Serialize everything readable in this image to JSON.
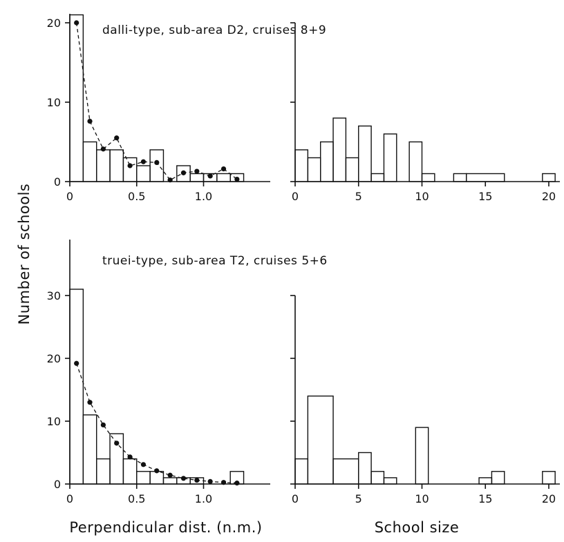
{
  "labels": {
    "ylabel": "Number of schools",
    "xlabel_left": "Perpendicular dist. (n.m.)",
    "xlabel_right": "School size"
  },
  "chart_data": [
    {
      "type": "bar",
      "id": "dalli-dist",
      "title": "dalli-type, sub-area D2, cruises 8+9",
      "xlabel": "",
      "ylabel": "Number of schools",
      "xlim": [
        0,
        1.5
      ],
      "ylim": [
        0,
        22
      ],
      "xticks": [
        0,
        0.5,
        1.0
      ],
      "xtick_labels": [
        "0",
        "0.5",
        "1.0"
      ],
      "yticks": [
        0,
        10,
        20
      ],
      "ytick_labels": [
        "0",
        "10",
        "20"
      ],
      "bin_edges": [
        0,
        0.1,
        0.2,
        0.3,
        0.4,
        0.5,
        0.6,
        0.7,
        0.8,
        0.9,
        1.0,
        1.1,
        1.2,
        1.3
      ],
      "values": [
        21,
        5,
        4,
        4,
        3,
        2,
        4,
        0,
        2,
        1,
        1,
        1,
        1
      ],
      "fitted_points": {
        "x": [
          0.05,
          0.15,
          0.25,
          0.35,
          0.45,
          0.55,
          0.65,
          0.75,
          0.85,
          0.95,
          1.05,
          1.15,
          1.25
        ],
        "y": [
          20,
          7.6,
          4.1,
          5.5,
          2.0,
          2.5,
          2.4,
          0.2,
          1.1,
          1.3,
          0.7,
          1.6,
          0.3
        ]
      }
    },
    {
      "type": "bar",
      "id": "dalli-size",
      "title": "",
      "xlabel": "",
      "ylabel": "",
      "xlim": [
        0,
        20.5
      ],
      "ylim": [
        0,
        22
      ],
      "xticks": [
        0,
        5,
        10,
        15,
        20
      ],
      "xtick_labels": [
        "0",
        "5",
        "10",
        "15",
        "20"
      ],
      "yticks": [
        0,
        10,
        20
      ],
      "ytick_labels": [],
      "bin_edges": [
        0,
        1,
        2,
        3,
        4,
        5,
        6,
        7,
        8,
        9,
        10,
        11,
        12.5,
        13.5,
        16.5,
        19.5,
        20.5
      ],
      "values": [
        4,
        3,
        5,
        8,
        3,
        7,
        1,
        6,
        0,
        5,
        1,
        0,
        1,
        1,
        0,
        1
      ]
    },
    {
      "type": "bar",
      "id": "truei-dist",
      "title": "truei-type, sub-area T2, cruises 5+6",
      "xlabel": "Perpendicular dist. (n.m.)",
      "ylabel": "Number of schools",
      "xlim": [
        0,
        1.5
      ],
      "ylim": [
        0,
        32
      ],
      "xticks": [
        0,
        0.5,
        1.0
      ],
      "xtick_labels": [
        "0",
        "0.5",
        "1.0"
      ],
      "yticks": [
        0,
        10,
        20,
        30
      ],
      "ytick_labels": [
        "0",
        "10",
        "20",
        "30"
      ],
      "bin_edges": [
        0,
        0.1,
        0.2,
        0.3,
        0.4,
        0.5,
        0.6,
        0.7,
        0.8,
        0.9,
        1.0,
        1.1,
        1.2,
        1.3
      ],
      "values": [
        31,
        11,
        4,
        8,
        4,
        2,
        2,
        1,
        1,
        1,
        0,
        0,
        2
      ],
      "fitted_points": {
        "x": [
          0.05,
          0.15,
          0.25,
          0.35,
          0.45,
          0.55,
          0.65,
          0.75,
          0.85,
          0.95,
          1.05,
          1.15,
          1.25
        ],
        "y": [
          19.2,
          13.0,
          9.4,
          6.5,
          4.3,
          3.1,
          2.1,
          1.4,
          0.9,
          0.6,
          0.4,
          0.25,
          0.15
        ]
      }
    },
    {
      "type": "bar",
      "id": "truei-size",
      "title": "",
      "xlabel": "School size",
      "ylabel": "",
      "xlim": [
        0,
        20.5
      ],
      "ylim": [
        0,
        32
      ],
      "xticks": [
        0,
        5,
        10,
        15,
        20
      ],
      "xtick_labels": [
        "0",
        "5",
        "10",
        "15",
        "20"
      ],
      "yticks": [
        0,
        10,
        20,
        30
      ],
      "ytick_labels": [],
      "bin_edges": [
        0,
        1,
        3,
        5,
        6,
        7,
        8,
        9.5,
        10.5,
        14.5,
        15.5,
        16.5,
        19.5,
        20.5
      ],
      "values": [
        4,
        14,
        4,
        5,
        2,
        1,
        0,
        9,
        0,
        1,
        2,
        0,
        2
      ]
    }
  ]
}
